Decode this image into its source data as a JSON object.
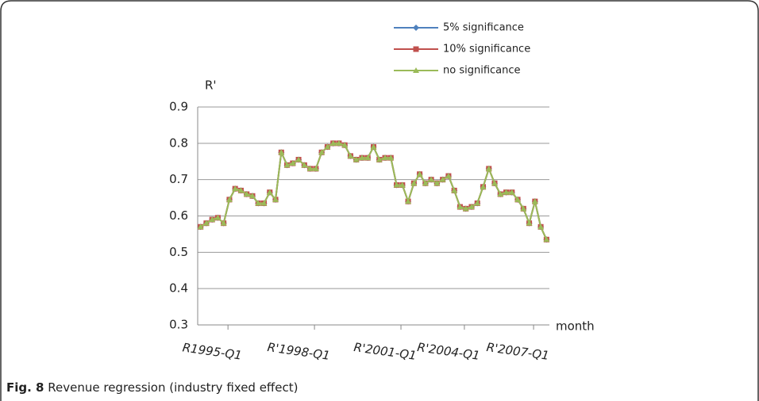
{
  "chart_data": {
    "type": "line",
    "y_label": "R'",
    "x_label": "month",
    "categories": [
      null,
      null,
      "R1995-Q1",
      null,
      null,
      null,
      null,
      null,
      null,
      null,
      null,
      null,
      null,
      null,
      null,
      null,
      null,
      "R'1998-Q1",
      null,
      null,
      null,
      null,
      null,
      null,
      null,
      null,
      null,
      null,
      null,
      null,
      null,
      null,
      "R'2001-Q1",
      null,
      null,
      null,
      null,
      null,
      null,
      null,
      null,
      null,
      null,
      "R'2004-Q1",
      null,
      null,
      null,
      null,
      null,
      null,
      null,
      null,
      null,
      null,
      null,
      "R'2007-Q1",
      null,
      null,
      null,
      null,
      null
    ],
    "series": [
      {
        "name": "5% significance",
        "color": "#4f81bd",
        "marker": "diamond",
        "values": [
          0.57,
          0.58,
          0.59,
          0.595,
          0.58,
          0.645,
          0.675,
          0.67,
          0.66,
          0.655,
          0.635,
          0.635,
          0.665,
          0.645,
          0.775,
          0.74,
          0.745,
          0.755,
          0.74,
          0.73,
          0.73,
          0.775,
          0.79,
          0.8,
          0.8,
          0.795,
          0.765,
          0.755,
          0.76,
          0.76,
          0.79,
          0.755,
          0.76,
          0.76,
          0.685,
          0.685,
          0.64,
          0.69,
          0.715,
          0.69,
          0.7,
          0.69,
          0.7,
          0.71,
          0.67,
          0.625,
          0.62,
          0.625,
          0.635,
          0.68,
          0.73,
          0.69,
          0.66,
          0.665,
          0.665,
          0.645,
          0.62,
          0.58,
          0.64,
          0.57,
          0.535
        ]
      },
      {
        "name": "10% significance",
        "color": "#c0504d",
        "marker": "square",
        "values": [
          0.57,
          0.58,
          0.59,
          0.595,
          0.58,
          0.645,
          0.675,
          0.67,
          0.66,
          0.655,
          0.635,
          0.635,
          0.665,
          0.645,
          0.775,
          0.74,
          0.745,
          0.755,
          0.74,
          0.73,
          0.73,
          0.775,
          0.79,
          0.8,
          0.8,
          0.795,
          0.765,
          0.755,
          0.76,
          0.76,
          0.79,
          0.755,
          0.76,
          0.76,
          0.685,
          0.685,
          0.64,
          0.69,
          0.715,
          0.69,
          0.7,
          0.69,
          0.7,
          0.71,
          0.67,
          0.625,
          0.62,
          0.625,
          0.635,
          0.68,
          0.73,
          0.69,
          0.66,
          0.665,
          0.665,
          0.645,
          0.62,
          0.58,
          0.64,
          0.57,
          0.535
        ]
      },
      {
        "name": "no significance",
        "color": "#9bbb59",
        "marker": "triangle",
        "values": [
          0.57,
          0.58,
          0.59,
          0.595,
          0.58,
          0.645,
          0.675,
          0.67,
          0.66,
          0.655,
          0.635,
          0.635,
          0.665,
          0.645,
          0.775,
          0.74,
          0.745,
          0.755,
          0.74,
          0.73,
          0.73,
          0.775,
          0.79,
          0.8,
          0.8,
          0.795,
          0.765,
          0.755,
          0.76,
          0.76,
          0.79,
          0.755,
          0.76,
          0.76,
          0.685,
          0.685,
          0.64,
          0.69,
          0.715,
          0.69,
          0.7,
          0.69,
          0.7,
          0.71,
          0.67,
          0.625,
          0.62,
          0.625,
          0.635,
          0.68,
          0.73,
          0.69,
          0.66,
          0.665,
          0.665,
          0.645,
          0.62,
          0.58,
          0.64,
          0.57,
          0.535
        ]
      }
    ],
    "ylim": [
      0.3,
      0.9
    ],
    "yticks": [
      0.3,
      0.4,
      0.5,
      0.6,
      0.7,
      0.8,
      0.9
    ],
    "grid": true
  },
  "caption": {
    "label": "Fig. 8",
    "text": "Revenue regression (industry fixed effect)"
  }
}
